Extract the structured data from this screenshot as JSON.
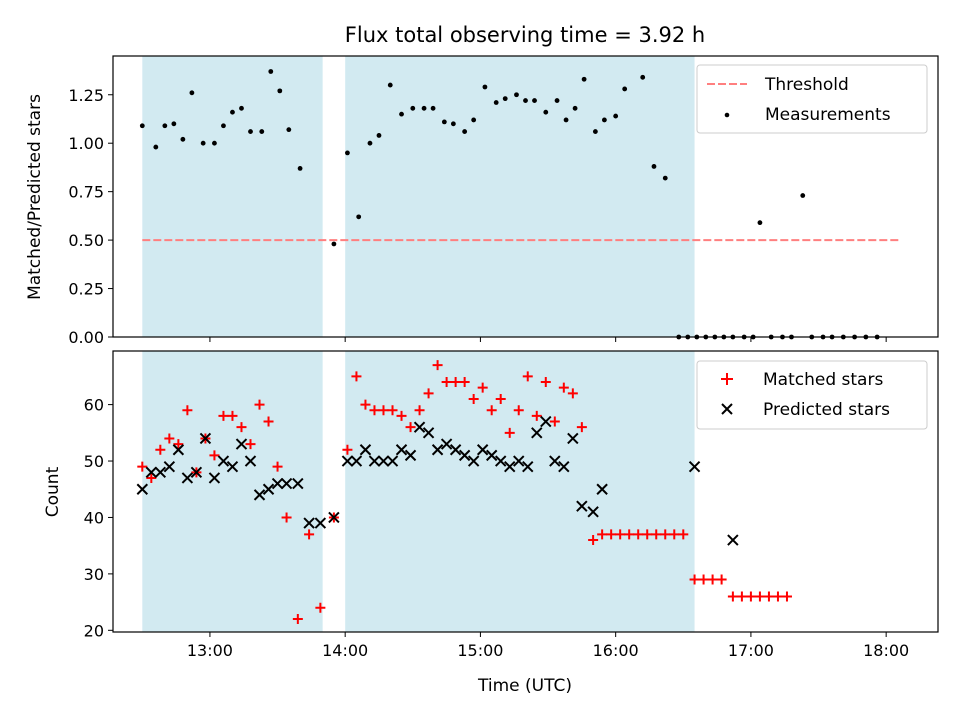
{
  "chart_data": [
    {
      "type": "scatter",
      "title": "Flux total observing time = 3.92 h",
      "xlabel": "",
      "ylabel": "Matched/Predicted stars",
      "xlim": [
        "12:17",
        "18:23"
      ],
      "ylim": [
        0,
        1.45
      ],
      "x_ticks": [
        "13:00",
        "14:00",
        "15:00",
        "16:00",
        "17:00",
        "18:00"
      ],
      "y_ticks": [
        "0.00",
        "0.25",
        "0.50",
        "0.75",
        "1.00",
        "1.25"
      ],
      "shaded_spans": [
        [
          "12:30",
          "13:50"
        ],
        [
          "14:00",
          "16:35"
        ]
      ],
      "shade_color": "#add8e6",
      "legend": "top-right",
      "threshold": {
        "name": "Threshold",
        "value": 0.5,
        "x_range": [
          "12:30",
          "18:06"
        ],
        "color": "#ff7f7f",
        "style": "dashed"
      },
      "series": [
        {
          "name": "Measurements",
          "color": "#000000",
          "marker": "dot",
          "points": [
            [
              "12:30",
              1.09
            ],
            [
              "12:36",
              0.98
            ],
            [
              "12:40",
              1.09
            ],
            [
              "12:44",
              1.1
            ],
            [
              "12:48",
              1.02
            ],
            [
              "12:52",
              1.26
            ],
            [
              "12:57",
              1.0
            ],
            [
              "13:02",
              1.0
            ],
            [
              "13:06",
              1.09
            ],
            [
              "13:10",
              1.16
            ],
            [
              "13:14",
              1.18
            ],
            [
              "13:18",
              1.06
            ],
            [
              "13:23",
              1.06
            ],
            [
              "13:27",
              1.37
            ],
            [
              "13:31",
              1.27
            ],
            [
              "13:35",
              1.07
            ],
            [
              "13:40",
              0.87
            ],
            [
              "13:55",
              0.48
            ],
            [
              "14:01",
              0.95
            ],
            [
              "14:06",
              0.62
            ],
            [
              "14:11",
              1.0
            ],
            [
              "14:15",
              1.04
            ],
            [
              "14:20",
              1.3
            ],
            [
              "14:25",
              1.15
            ],
            [
              "14:30",
              1.18
            ],
            [
              "14:35",
              1.18
            ],
            [
              "14:39",
              1.18
            ],
            [
              "14:44",
              1.11
            ],
            [
              "14:48",
              1.1
            ],
            [
              "14:53",
              1.06
            ],
            [
              "14:57",
              1.12
            ],
            [
              "15:02",
              1.29
            ],
            [
              "15:07",
              1.21
            ],
            [
              "15:11",
              1.23
            ],
            [
              "15:16",
              1.25
            ],
            [
              "15:20",
              1.22
            ],
            [
              "15:24",
              1.22
            ],
            [
              "15:29",
              1.16
            ],
            [
              "15:34",
              1.22
            ],
            [
              "15:38",
              1.12
            ],
            [
              "15:42",
              1.18
            ],
            [
              "15:46",
              1.33
            ],
            [
              "15:51",
              1.06
            ],
            [
              "15:55",
              1.12
            ],
            [
              "16:00",
              1.14
            ],
            [
              "16:04",
              1.28
            ],
            [
              "16:12",
              1.34
            ],
            [
              "16:17",
              0.88
            ],
            [
              "16:22",
              0.82
            ],
            [
              "16:28",
              0.0
            ],
            [
              "16:32",
              0.0
            ],
            [
              "16:36",
              0.0
            ],
            [
              "16:40",
              0.0
            ],
            [
              "16:44",
              0.0
            ],
            [
              "16:48",
              0.0
            ],
            [
              "16:52",
              0.0
            ],
            [
              "16:57",
              0.0
            ],
            [
              "17:01",
              0.0
            ],
            [
              "17:04",
              0.59
            ],
            [
              "17:09",
              0.0
            ],
            [
              "17:14",
              0.0
            ],
            [
              "17:18",
              0.0
            ],
            [
              "17:23",
              0.73
            ],
            [
              "17:27",
              0.0
            ],
            [
              "17:32",
              0.0
            ],
            [
              "17:36",
              0.0
            ],
            [
              "17:41",
              0.0
            ],
            [
              "17:46",
              0.0
            ],
            [
              "17:51",
              0.0
            ],
            [
              "17:56",
              0.0
            ]
          ]
        }
      ]
    },
    {
      "type": "scatter",
      "title": "",
      "xlabel": "Time (UTC)",
      "ylabel": "Count",
      "xlim": [
        "12:17",
        "18:23"
      ],
      "ylim": [
        19.7,
        69.5
      ],
      "x_ticks": [
        "13:00",
        "14:00",
        "15:00",
        "16:00",
        "17:00",
        "18:00"
      ],
      "y_ticks": [
        "20",
        "30",
        "40",
        "50",
        "60"
      ],
      "shaded_spans": [
        [
          "12:30",
          "13:50"
        ],
        [
          "14:00",
          "16:35"
        ]
      ],
      "shade_color": "#add8e6",
      "legend": "top-right",
      "series": [
        {
          "name": "Matched stars",
          "color": "#ff0000",
          "marker": "plus",
          "points": [
            [
              "12:30",
              49
            ],
            [
              "12:34",
              47
            ],
            [
              "12:38",
              52
            ],
            [
              "12:42",
              54
            ],
            [
              "12:46",
              53
            ],
            [
              "12:50",
              59
            ],
            [
              "12:54",
              48
            ],
            [
              "12:58",
              54
            ],
            [
              "13:02",
              51
            ],
            [
              "13:06",
              58
            ],
            [
              "13:10",
              58
            ],
            [
              "13:14",
              56
            ],
            [
              "13:18",
              53
            ],
            [
              "13:22",
              60
            ],
            [
              "13:26",
              57
            ],
            [
              "13:30",
              49
            ],
            [
              "13:34",
              40
            ],
            [
              "13:39",
              22
            ],
            [
              "13:44",
              37
            ],
            [
              "13:49",
              24
            ],
            [
              "13:55",
              40
            ],
            [
              "14:01",
              52
            ],
            [
              "14:05",
              65
            ],
            [
              "14:09",
              60
            ],
            [
              "14:13",
              59
            ],
            [
              "14:17",
              59
            ],
            [
              "14:21",
              59
            ],
            [
              "14:25",
              58
            ],
            [
              "14:29",
              56
            ],
            [
              "14:33",
              59
            ],
            [
              "14:37",
              62
            ],
            [
              "14:41",
              67
            ],
            [
              "14:45",
              64
            ],
            [
              "14:49",
              64
            ],
            [
              "14:53",
              64
            ],
            [
              "14:57",
              61
            ],
            [
              "15:01",
              63
            ],
            [
              "15:05",
              59
            ],
            [
              "15:09",
              61
            ],
            [
              "15:13",
              55
            ],
            [
              "15:17",
              59
            ],
            [
              "15:21",
              65
            ],
            [
              "15:25",
              58
            ],
            [
              "15:29",
              64
            ],
            [
              "15:33",
              57
            ],
            [
              "15:37",
              63
            ],
            [
              "15:41",
              62
            ],
            [
              "15:45",
              56
            ],
            [
              "15:50",
              36
            ],
            [
              "15:54",
              37
            ],
            [
              "15:58",
              37
            ],
            [
              "16:02",
              37
            ],
            [
              "16:06",
              37
            ],
            [
              "16:10",
              37
            ],
            [
              "16:14",
              37
            ],
            [
              "16:18",
              37
            ],
            [
              "16:22",
              37
            ],
            [
              "16:26",
              37
            ],
            [
              "16:30",
              37
            ],
            [
              "16:35",
              29
            ],
            [
              "16:39",
              29
            ],
            [
              "16:43",
              29
            ],
            [
              "16:47",
              29
            ],
            [
              "16:52",
              26
            ],
            [
              "16:56",
              26
            ],
            [
              "17:00",
              26
            ],
            [
              "17:04",
              26
            ],
            [
              "17:08",
              26
            ],
            [
              "17:12",
              26
            ],
            [
              "17:16",
              26
            ]
          ]
        },
        {
          "name": "Predicted stars",
          "color": "#000000",
          "marker": "x",
          "points": [
            [
              "12:30",
              45
            ],
            [
              "12:34",
              48
            ],
            [
              "12:38",
              48
            ],
            [
              "12:42",
              49
            ],
            [
              "12:46",
              52
            ],
            [
              "12:50",
              47
            ],
            [
              "12:54",
              48
            ],
            [
              "12:58",
              54
            ],
            [
              "13:02",
              47
            ],
            [
              "13:06",
              50
            ],
            [
              "13:10",
              49
            ],
            [
              "13:14",
              53
            ],
            [
              "13:18",
              50
            ],
            [
              "13:22",
              44
            ],
            [
              "13:26",
              45
            ],
            [
              "13:30",
              46
            ],
            [
              "13:34",
              46
            ],
            [
              "13:39",
              46
            ],
            [
              "13:44",
              39
            ],
            [
              "13:49",
              39
            ],
            [
              "13:55",
              40
            ],
            [
              "14:01",
              50
            ],
            [
              "14:05",
              50
            ],
            [
              "14:09",
              52
            ],
            [
              "14:13",
              50
            ],
            [
              "14:17",
              50
            ],
            [
              "14:21",
              50
            ],
            [
              "14:25",
              52
            ],
            [
              "14:29",
              51
            ],
            [
              "14:33",
              56
            ],
            [
              "14:37",
              55
            ],
            [
              "14:41",
              52
            ],
            [
              "14:45",
              53
            ],
            [
              "14:49",
              52
            ],
            [
              "14:53",
              51
            ],
            [
              "14:57",
              50
            ],
            [
              "15:01",
              52
            ],
            [
              "15:05",
              51
            ],
            [
              "15:09",
              50
            ],
            [
              "15:13",
              49
            ],
            [
              "15:17",
              50
            ],
            [
              "15:21",
              49
            ],
            [
              "15:25",
              55
            ],
            [
              "15:29",
              57
            ],
            [
              "15:33",
              50
            ],
            [
              "15:37",
              49
            ],
            [
              "15:41",
              54
            ],
            [
              "15:45",
              42
            ],
            [
              "15:50",
              41
            ],
            [
              "15:54",
              45
            ],
            [
              "16:35",
              49
            ],
            [
              "16:52",
              36
            ]
          ]
        }
      ]
    }
  ]
}
